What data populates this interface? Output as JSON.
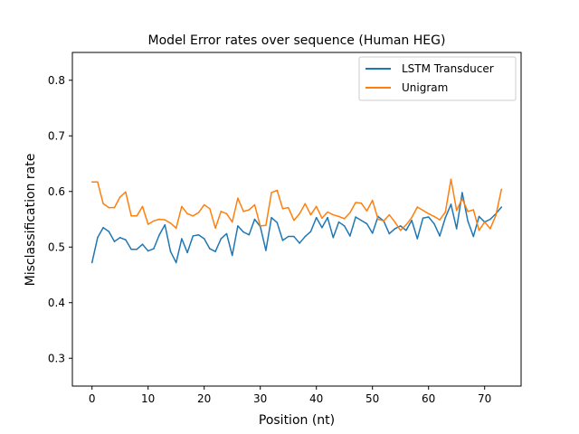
{
  "chart_data": {
    "type": "line",
    "title": "Model Error rates over sequence (Human HEG)",
    "xlabel": "Position (nt)",
    "ylabel": "Misclassification rate",
    "xlim": [
      -3.5,
      76.5
    ],
    "ylim": [
      0.25,
      0.85
    ],
    "xticks": [
      0,
      10,
      20,
      30,
      40,
      50,
      60,
      70
    ],
    "yticks": [
      0.3,
      0.4,
      0.5,
      0.6,
      0.7,
      0.8
    ],
    "ytick_labels": [
      "0.3",
      "0.4",
      "0.5",
      "0.6",
      "0.7",
      "0.8"
    ],
    "grid": false,
    "legend_position": "top-right",
    "x": [
      0,
      1,
      2,
      3,
      4,
      5,
      6,
      7,
      8,
      9,
      10,
      11,
      12,
      13,
      14,
      15,
      16,
      17,
      18,
      19,
      20,
      21,
      22,
      23,
      24,
      25,
      26,
      27,
      28,
      29,
      30,
      31,
      32,
      33,
      34,
      35,
      36,
      37,
      38,
      39,
      40,
      41,
      42,
      43,
      44,
      45,
      46,
      47,
      48,
      49,
      50,
      51,
      52,
      53,
      54,
      55,
      56,
      57,
      58,
      59,
      60,
      61,
      62,
      63,
      64,
      65,
      66,
      67,
      68,
      69,
      70,
      71,
      72,
      73
    ],
    "series": [
      {
        "name": "LSTM Transducer",
        "color": "#1f77b4",
        "values": [
          0.472,
          0.517,
          0.535,
          0.528,
          0.51,
          0.517,
          0.513,
          0.496,
          0.496,
          0.505,
          0.493,
          0.497,
          0.522,
          0.54,
          0.492,
          0.472,
          0.515,
          0.49,
          0.52,
          0.522,
          0.515,
          0.497,
          0.492,
          0.515,
          0.524,
          0.485,
          0.538,
          0.527,
          0.522,
          0.55,
          0.537,
          0.494,
          0.553,
          0.544,
          0.512,
          0.519,
          0.519,
          0.507,
          0.519,
          0.528,
          0.553,
          0.535,
          0.553,
          0.517,
          0.545,
          0.538,
          0.52,
          0.554,
          0.548,
          0.542,
          0.525,
          0.555,
          0.547,
          0.524,
          0.533,
          0.538,
          0.53,
          0.548,
          0.515,
          0.552,
          0.554,
          0.542,
          0.52,
          0.553,
          0.577,
          0.533,
          0.598,
          0.547,
          0.519,
          0.555,
          0.545,
          0.55,
          0.56,
          0.572
        ]
      },
      {
        "name": "Unigram",
        "color": "#ff7f0e",
        "values": [
          0.617,
          0.617,
          0.578,
          0.571,
          0.571,
          0.59,
          0.599,
          0.556,
          0.556,
          0.573,
          0.541,
          0.547,
          0.55,
          0.549,
          0.543,
          0.534,
          0.573,
          0.56,
          0.556,
          0.562,
          0.576,
          0.569,
          0.534,
          0.564,
          0.56,
          0.545,
          0.588,
          0.564,
          0.567,
          0.576,
          0.538,
          0.539,
          0.598,
          0.602,
          0.569,
          0.571,
          0.548,
          0.56,
          0.578,
          0.558,
          0.573,
          0.552,
          0.563,
          0.558,
          0.555,
          0.551,
          0.562,
          0.58,
          0.579,
          0.565,
          0.584,
          0.55,
          0.547,
          0.558,
          0.545,
          0.53,
          0.54,
          0.553,
          0.572,
          0.566,
          0.56,
          0.555,
          0.549,
          0.563,
          0.622,
          0.566,
          0.587,
          0.564,
          0.567,
          0.53,
          0.545,
          0.533,
          0.557,
          0.604
        ]
      }
    ]
  }
}
